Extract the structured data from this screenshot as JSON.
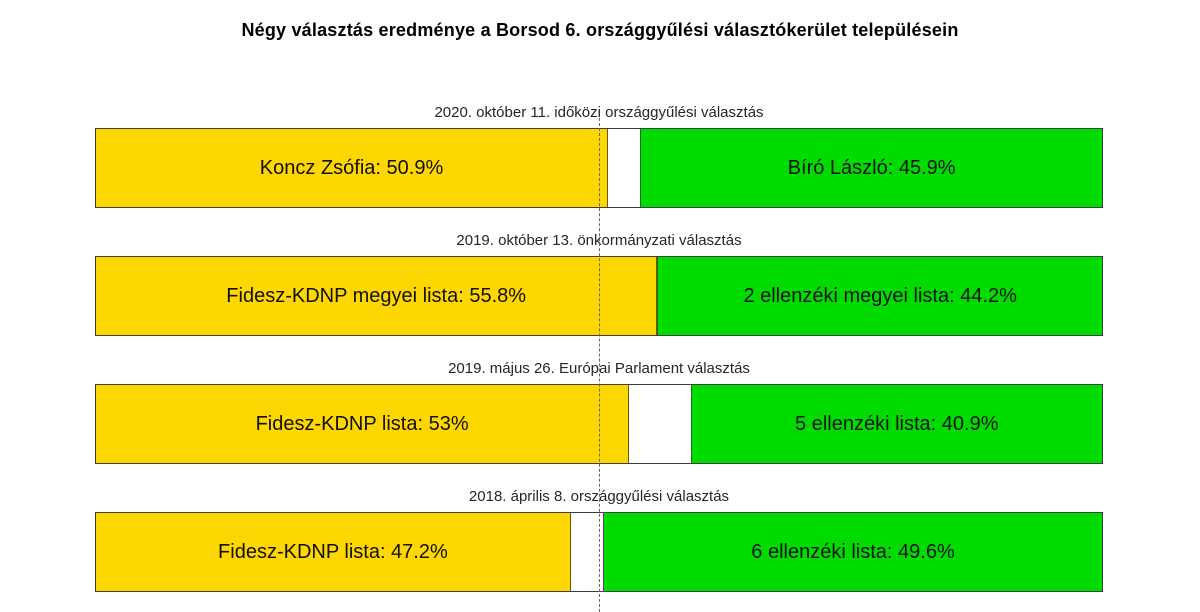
{
  "title": "Négy választás eredménye a Borsod 6. országgyűlési választókerület településein",
  "colors": {
    "fidesz_yellow": "#FFD700",
    "opposition_green": "#00DC00",
    "bar_border": "#3C3C3C",
    "reference_line_gray": "#666666",
    "marker_line_magenta": "#CC00CC"
  },
  "chart_data": {
    "type": "bar",
    "orientation": "horizontal-stacked",
    "axis_range_percent": [
      0,
      100
    ],
    "reference_line_percent": 50,
    "grid": false,
    "legend": false,
    "title": "Négy választás eredménye a Borsod 6. országgyűlési választókerület településein",
    "bars": [
      {
        "label": "2020. október 11. időközi országgyűlési választás",
        "left": {
          "text": "Koncz Zsófia: 50.9%",
          "name": "Koncz Zsófia",
          "value": 50.9
        },
        "right": {
          "text": "Bíró László: 45.9%",
          "name": "Bíró László",
          "value": 45.9
        }
      },
      {
        "label": "2019. október 13. önkormányzati választás",
        "left": {
          "text": "Fidesz-KDNP megyei lista: 55.8%",
          "name": "Fidesz-KDNP megyei lista",
          "value": 55.8
        },
        "right": {
          "text": "2 ellenzéki megyei lista: 44.2%",
          "name": "2 ellenzéki megyei lista",
          "value": 44.2
        }
      },
      {
        "label": "2019. május 26. Európai Parlament választás",
        "left": {
          "text": "Fidesz-KDNP lista: 53%",
          "name": "Fidesz-KDNP lista",
          "value": 53.0
        },
        "right": {
          "text": "5 ellenzéki lista: 40.9%",
          "name": "5 ellenzéki lista",
          "value": 40.9
        }
      },
      {
        "label": "2018. április 8. országgyűlési választás",
        "left": {
          "text": "Fidesz-KDNP lista: 47.2%",
          "name": "Fidesz-KDNP lista",
          "value": 47.2
        },
        "right": {
          "text": "6 ellenzéki lista: 49.6%",
          "name": "6 ellenzéki lista",
          "value": 49.6
        }
      }
    ]
  }
}
